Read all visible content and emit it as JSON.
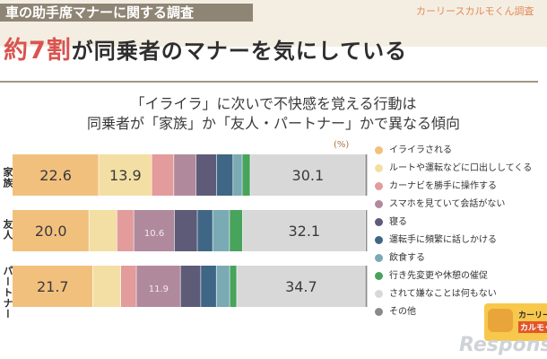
{
  "header": {
    "tag": "車の助手席マナーに関する調査",
    "brand": "カーリースカルモくん調査",
    "headline_pct": "約7割",
    "headline_rest": "が同乗者のマナーを気にしている"
  },
  "subtitle_lines": [
    "「イライラ」に次いで不快感を覚える行動は",
    "同乗者が「家族」か「友人・パートナー」かで異なる傾向"
  ],
  "logo": {
    "line1": "カーリー",
    "line2": "カルモく"
  },
  "watermark": "Respons",
  "colors": [
    "#f2c07d",
    "#f3dfa3",
    "#e39b9b",
    "#b08a9c",
    "#5e5b78",
    "#3f6684",
    "#7aaab4",
    "#48a35c",
    "#d8d8d8",
    "#8a8a8a"
  ],
  "chart_data": {
    "type": "bar",
    "orientation": "horizontal",
    "stacked": true,
    "unit": "(%)",
    "categories": [
      "家族",
      "友人",
      "パートナー"
    ],
    "series": [
      {
        "name": "イライラされる",
        "values": [
          22.6,
          20.0,
          21.7
        ]
      },
      {
        "name": "ルートや運転などに口出ししてくる",
        "values": [
          13.9,
          7.3,
          7.6
        ]
      },
      {
        "name": "カーナビを勝手に操作する",
        "values": [
          5.8,
          4.4,
          4.2
        ]
      },
      {
        "name": "スマホを見ていて会話がない",
        "values": [
          5.8,
          10.6,
          11.9
        ]
      },
      {
        "name": "寝る",
        "values": [
          5.4,
          6.0,
          5.5
        ]
      },
      {
        "name": "運転手に頻繁に話しかける",
        "values": [
          4.3,
          4.0,
          4.2
        ]
      },
      {
        "name": "飲食する",
        "values": [
          2.4,
          4.4,
          3.6
        ]
      },
      {
        "name": "行き先変更や休憩の催促",
        "values": [
          2.1,
          3.4,
          1.9
        ]
      },
      {
        "name": "されて嫌なことは何もない",
        "values": [
          30.1,
          32.1,
          34.7
        ]
      },
      {
        "name": "その他",
        "values": [
          0.6,
          0.5,
          0.6
        ]
      }
    ],
    "labeled_values": [
      [
        "22.6",
        "13.9",
        "",
        "",
        "",
        "",
        "",
        "",
        "30.1",
        ""
      ],
      [
        "20.0",
        "",
        "",
        "10.6",
        "",
        "",
        "",
        "",
        "32.1",
        ""
      ],
      [
        "21.7",
        "",
        "",
        "11.9",
        "",
        "",
        "",
        "",
        "34.7",
        ""
      ]
    ],
    "legend_position": "right"
  }
}
